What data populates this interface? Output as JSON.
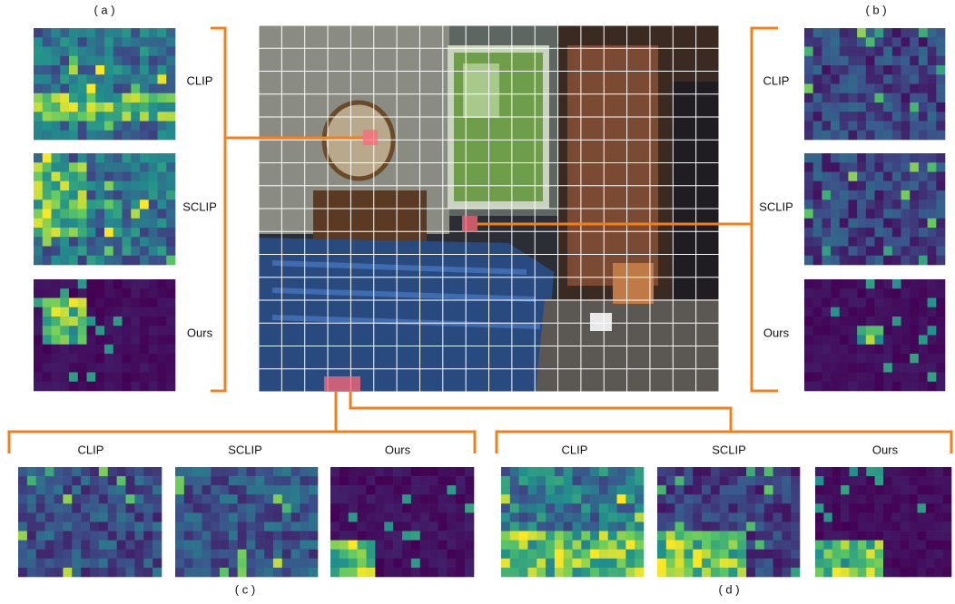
{
  "panels": [
    {
      "label": "( a )",
      "rows": [
        "CLIP",
        "SCLIP",
        "Ours"
      ]
    },
    {
      "label": "( b )",
      "rows": [
        "CLIP",
        "SCLIP",
        "Ours"
      ]
    },
    {
      "label": "( c )",
      "rows": [
        "CLIP",
        "SCLIP",
        "Ours"
      ]
    },
    {
      "label": "( d )",
      "rows": [
        "CLIP",
        "SCLIP",
        "Ours"
      ]
    }
  ]
}
